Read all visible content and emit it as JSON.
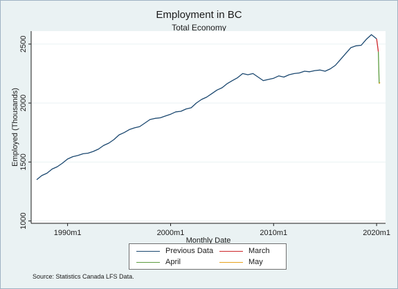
{
  "chart_data": {
    "type": "line",
    "title": "Employment in BC",
    "subtitle": "Total Economy",
    "xlabel": "Monthly Date",
    "ylabel": "Employed (Thousands)",
    "x_ticks": [
      "1990m1",
      "2000m1",
      "2010m1",
      "2020m1"
    ],
    "y_ticks": [
      "1000",
      "1500",
      "2000",
      "2500"
    ],
    "xlim": [
      1987,
      2020.6
    ],
    "ylim": [
      980,
      2610
    ],
    "grid": "horizontal",
    "legend_position": "bottom",
    "series": [
      {
        "name": "Previous Data",
        "color": "#1a476f",
        "x": [
          1987.0,
          1987.5,
          1988.0,
          1988.5,
          1989.0,
          1989.5,
          1990.0,
          1990.5,
          1991.0,
          1991.5,
          1992.0,
          1992.5,
          1993.0,
          1993.5,
          1994.0,
          1994.5,
          1995.0,
          1995.5,
          1996.0,
          1996.5,
          1997.0,
          1997.5,
          1998.0,
          1998.5,
          1999.0,
          1999.5,
          2000.0,
          2000.5,
          2001.0,
          2001.5,
          2002.0,
          2002.5,
          2003.0,
          2003.5,
          2004.0,
          2004.5,
          2005.0,
          2005.5,
          2006.0,
          2006.5,
          2007.0,
          2007.5,
          2008.0,
          2008.5,
          2009.0,
          2009.5,
          2010.0,
          2010.5,
          2011.0,
          2011.5,
          2012.0,
          2012.5,
          2013.0,
          2013.5,
          2014.0,
          2014.5,
          2015.0,
          2015.5,
          2016.0,
          2016.5,
          2017.0,
          2017.5,
          2018.0,
          2018.5,
          2019.0,
          2019.5,
          2020.0
        ],
        "values": [
          1350,
          1385,
          1405,
          1440,
          1460,
          1490,
          1525,
          1545,
          1555,
          1570,
          1575,
          1590,
          1610,
          1640,
          1660,
          1690,
          1730,
          1750,
          1775,
          1790,
          1800,
          1830,
          1860,
          1870,
          1875,
          1890,
          1905,
          1925,
          1930,
          1950,
          1960,
          2000,
          2030,
          2050,
          2080,
          2110,
          2130,
          2165,
          2190,
          2215,
          2250,
          2240,
          2250,
          2220,
          2190,
          2200,
          2210,
          2230,
          2220,
          2240,
          2250,
          2255,
          2270,
          2265,
          2275,
          2280,
          2270,
          2290,
          2320,
          2370,
          2420,
          2470,
          2485,
          2490,
          2540,
          2580,
          2545
        ]
      },
      {
        "name": "March",
        "color": "#cc2529",
        "x": [
          2020.0,
          2020.17
        ],
        "values": [
          2545,
          2435
        ]
      },
      {
        "name": "April",
        "color": "#5c9c3f",
        "x": [
          2020.17,
          2020.25
        ],
        "values": [
          2435,
          2165
        ]
      },
      {
        "name": "May",
        "color": "#e8a21c",
        "x": [
          2020.25,
          2020.33
        ],
        "values": [
          2165,
          2175
        ]
      }
    ],
    "source": "Source: Statistics Canada LFS Data."
  }
}
